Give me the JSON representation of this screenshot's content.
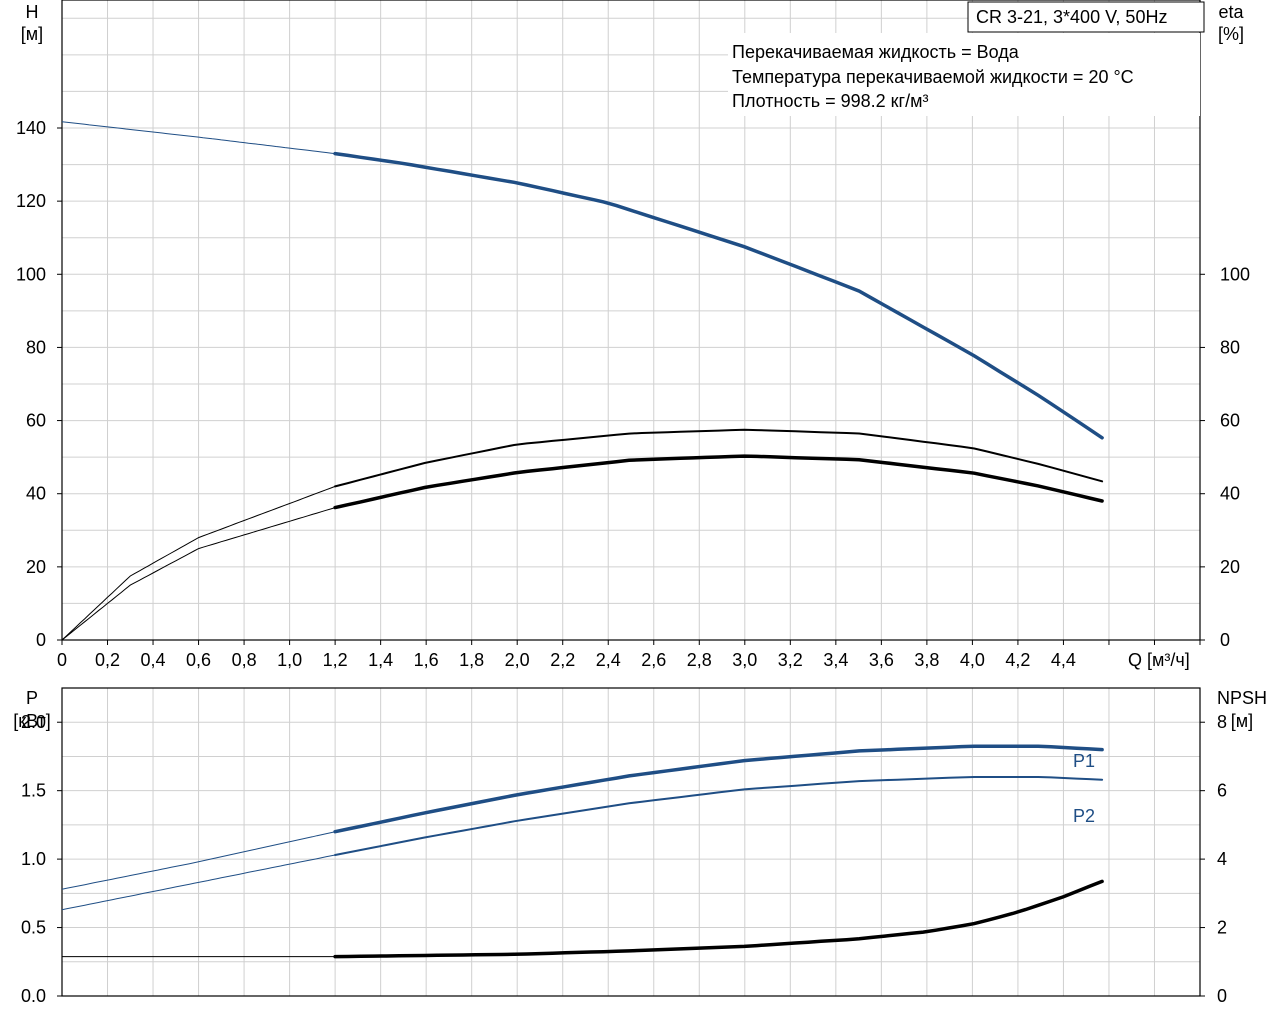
{
  "chart_data": [
    {
      "type": "line",
      "title": "CR 3-21, 3*400 V, 50Hz",
      "annotations": [
        "Перекачиваемая жидкость = Вода",
        "Температура перекачиваемой жидкости = 20 °C",
        "Плотность = 998.2 кг/м³"
      ],
      "xlabel": "Q [м³/ч]",
      "xlim": [
        0,
        5.0
      ],
      "x_ticks": [
        "0",
        "0,2",
        "0,4",
        "0,6",
        "0,8",
        "1,0",
        "1,2",
        "1,4",
        "1,6",
        "1,8",
        "2,0",
        "2,2",
        "2,4",
        "2,6",
        "2,8",
        "3,0",
        "3,2",
        "3,4",
        "3,6",
        "3,8",
        "4,0",
        "4,2",
        "4,4"
      ],
      "ylabel_left": [
        "H",
        "[м]"
      ],
      "ylim_left": [
        0,
        175
      ],
      "y_ticks_left": [
        "0",
        "20",
        "40",
        "60",
        "80",
        "100",
        "120",
        "140"
      ],
      "ylabel_right": [
        "eta",
        "[%]"
      ],
      "ylim_right": [
        0,
        175
      ],
      "y_ticks_right": [
        "0",
        "20",
        "40",
        "60",
        "80",
        "100"
      ],
      "grid": true,
      "series": [
        {
          "id": "H",
          "axis": "left",
          "color": "#1f4e85",
          "x": [
            0,
            0.6,
            1.2,
            1.5,
            2.0,
            2.4,
            3.0,
            3.5,
            4.0,
            4.3,
            4.57
          ],
          "y": [
            141.7,
            137.5,
            133.0,
            130.3,
            125.0,
            119.5,
            107.5,
            95.5,
            78.0,
            66.5,
            55.3
          ],
          "solid_from": 1.2
        },
        {
          "id": "eta_upper",
          "axis": "right",
          "color": "#000000",
          "x": [
            0,
            0.3,
            0.6,
            1.2,
            1.6,
            2.0,
            2.5,
            3.0,
            3.5,
            4.0,
            4.3,
            4.57
          ],
          "y": [
            0,
            17.5,
            28.0,
            42.0,
            48.5,
            53.5,
            56.5,
            57.5,
            56.5,
            52.5,
            48.0,
            43.4
          ],
          "solid_from": 1.2
        },
        {
          "id": "eta_lower",
          "axis": "right",
          "color": "#000000",
          "x": [
            0,
            0.3,
            0.6,
            1.2,
            1.6,
            2.0,
            2.5,
            3.0,
            3.5,
            4.0,
            4.3,
            4.57
          ],
          "y": [
            0,
            15.0,
            25.0,
            36.2,
            41.8,
            45.8,
            49.2,
            50.3,
            49.3,
            45.7,
            42.0,
            38.0
          ],
          "solid_from": 1.2
        }
      ]
    },
    {
      "type": "line",
      "ylabel_left": [
        "P",
        "[кВт]"
      ],
      "ylim_left": [
        0,
        2.25
      ],
      "y_ticks_left": [
        "0.0",
        "0.5",
        "1.0",
        "1.5",
        "2.0"
      ],
      "ylabel_right": [
        "NPSH",
        "[м]"
      ],
      "ylim_right": [
        0,
        9
      ],
      "y_ticks_right": [
        "0",
        "2",
        "4",
        "6",
        "8"
      ],
      "xlim": [
        0,
        5.0
      ],
      "grid": true,
      "series": [
        {
          "id": "P1",
          "name": "P1",
          "axis": "left",
          "color": "#1f4e85",
          "x": [
            0,
            0.6,
            1.2,
            1.6,
            2.0,
            2.5,
            3.0,
            3.5,
            4.0,
            4.3,
            4.57
          ],
          "y": [
            0.78,
            0.98,
            1.2,
            1.34,
            1.47,
            1.61,
            1.72,
            1.79,
            1.825,
            1.825,
            1.8
          ],
          "solid_from": 1.2
        },
        {
          "id": "P2",
          "name": "P2",
          "axis": "left",
          "color": "#1f4e85",
          "x": [
            0,
            0.6,
            1.2,
            1.6,
            2.0,
            2.5,
            3.0,
            3.5,
            4.0,
            4.3,
            4.57
          ],
          "y": [
            0.63,
            0.83,
            1.03,
            1.16,
            1.28,
            1.41,
            1.51,
            1.57,
            1.6,
            1.6,
            1.58
          ],
          "solid_from": 1.2
        },
        {
          "id": "NPSH",
          "axis": "right",
          "color": "#000000",
          "x": [
            0,
            1.2,
            2.0,
            2.5,
            3.0,
            3.5,
            3.8,
            4.0,
            4.2,
            4.4,
            4.57
          ],
          "y": [
            1.15,
            1.15,
            1.22,
            1.32,
            1.45,
            1.67,
            1.88,
            2.1,
            2.45,
            2.9,
            3.35
          ],
          "solid_from": 1.2
        }
      ]
    }
  ]
}
